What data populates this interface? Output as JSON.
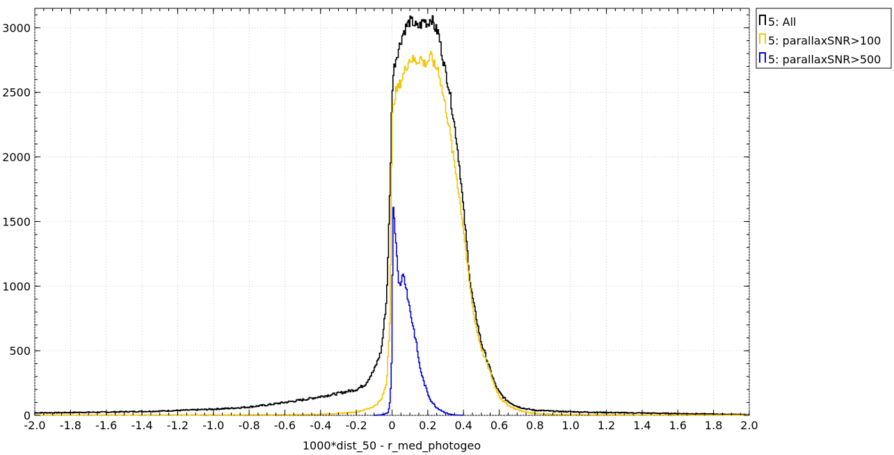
{
  "chart_data": {
    "type": "histogram",
    "xlabel": "1000*dist_50 - r_med_photogeo",
    "ylabel": "",
    "xlim": [
      -2.0,
      2.0
    ],
    "ylim": [
      0,
      3150
    ],
    "x_ticks": [
      "-2.0",
      "-1.8",
      "-1.6",
      "-1.4",
      "-1.2",
      "-1.0",
      "-0.8",
      "-0.6",
      "-0.4",
      "-0.2",
      "0",
      "0.2",
      "0.4",
      "0.6",
      "0.8",
      "1.0",
      "1.2",
      "1.4",
      "1.6",
      "1.8",
      "2.0"
    ],
    "y_ticks": [
      "0",
      "500",
      "1000",
      "1500",
      "2000",
      "2500",
      "3000"
    ],
    "legend_position": "outside-top-right",
    "series": [
      {
        "name": "5: All",
        "color": "#000000",
        "x": [
          -2.0,
          -1.9,
          -1.8,
          -1.7,
          -1.6,
          -1.5,
          -1.4,
          -1.3,
          -1.2,
          -1.1,
          -1.0,
          -0.9,
          -0.8,
          -0.7,
          -0.6,
          -0.5,
          -0.4,
          -0.3,
          -0.2,
          -0.15,
          -0.1,
          -0.06,
          -0.03,
          -0.01,
          0.0,
          0.01,
          0.02,
          0.04,
          0.06,
          0.08,
          0.1,
          0.12,
          0.14,
          0.16,
          0.18,
          0.2,
          0.22,
          0.24,
          0.26,
          0.28,
          0.3,
          0.32,
          0.34,
          0.36,
          0.38,
          0.4,
          0.42,
          0.44,
          0.46,
          0.48,
          0.5,
          0.52,
          0.55,
          0.58,
          0.6,
          0.63,
          0.66,
          0.7,
          0.75,
          0.8,
          0.9,
          1.0,
          1.2,
          1.4,
          1.6,
          1.8,
          2.0
        ],
        "y": [
          20,
          20,
          22,
          24,
          25,
          28,
          30,
          33,
          38,
          42,
          48,
          55,
          65,
          80,
          100,
          120,
          145,
          170,
          200,
          240,
          350,
          500,
          900,
          1800,
          2500,
          2680,
          2750,
          2850,
          2950,
          3010,
          3050,
          3040,
          3000,
          3020,
          3060,
          3030,
          3080,
          3000,
          2960,
          2800,
          2660,
          2530,
          2340,
          2150,
          1900,
          1600,
          1300,
          1000,
          840,
          700,
          560,
          480,
          350,
          230,
          180,
          130,
          100,
          70,
          50,
          40,
          32,
          28,
          22,
          18,
          14,
          10,
          6
        ]
      },
      {
        "name": "5: parallaxSNR>100",
        "color": "#f5c400",
        "x": [
          -2.0,
          -1.0,
          -0.8,
          -0.6,
          -0.4,
          -0.3,
          -0.2,
          -0.15,
          -0.1,
          -0.06,
          -0.03,
          -0.01,
          0.0,
          0.01,
          0.02,
          0.04,
          0.06,
          0.08,
          0.1,
          0.12,
          0.14,
          0.16,
          0.18,
          0.2,
          0.22,
          0.24,
          0.26,
          0.28,
          0.3,
          0.32,
          0.34,
          0.36,
          0.38,
          0.4,
          0.42,
          0.44,
          0.46,
          0.48,
          0.5,
          0.52,
          0.55,
          0.58,
          0.6,
          0.63,
          0.66,
          0.7,
          0.75,
          0.8,
          0.9,
          1.0,
          1.2,
          1.4,
          1.6,
          1.8,
          2.0
        ],
        "y": [
          2,
          3,
          4,
          5,
          8,
          15,
          25,
          45,
          70,
          120,
          250,
          800,
          2280,
          2420,
          2500,
          2550,
          2620,
          2700,
          2760,
          2750,
          2740,
          2770,
          2720,
          2740,
          2780,
          2700,
          2680,
          2520,
          2390,
          2230,
          2030,
          1860,
          1660,
          1450,
          1180,
          950,
          760,
          630,
          520,
          440,
          330,
          210,
          150,
          100,
          70,
          45,
          25,
          15,
          8,
          5,
          4,
          3,
          3,
          2,
          2
        ]
      },
      {
        "name": "5: parallaxSNR>500",
        "color": "#0000dd",
        "x": [
          -0.1,
          -0.05,
          -0.02,
          -0.01,
          0.0,
          0.005,
          0.01,
          0.02,
          0.03,
          0.04,
          0.05,
          0.06,
          0.07,
          0.08,
          0.09,
          0.1,
          0.11,
          0.12,
          0.13,
          0.14,
          0.15,
          0.16,
          0.18,
          0.2,
          0.22,
          0.25,
          0.28,
          0.3,
          0.32,
          0.34,
          0.36,
          0.4
        ],
        "y": [
          0,
          5,
          20,
          120,
          500,
          1720,
          1540,
          1400,
          1180,
          1010,
          990,
          1130,
          1040,
          1000,
          890,
          830,
          740,
          680,
          600,
          530,
          420,
          350,
          250,
          170,
          110,
          60,
          35,
          20,
          10,
          5,
          2,
          0
        ]
      }
    ]
  }
}
